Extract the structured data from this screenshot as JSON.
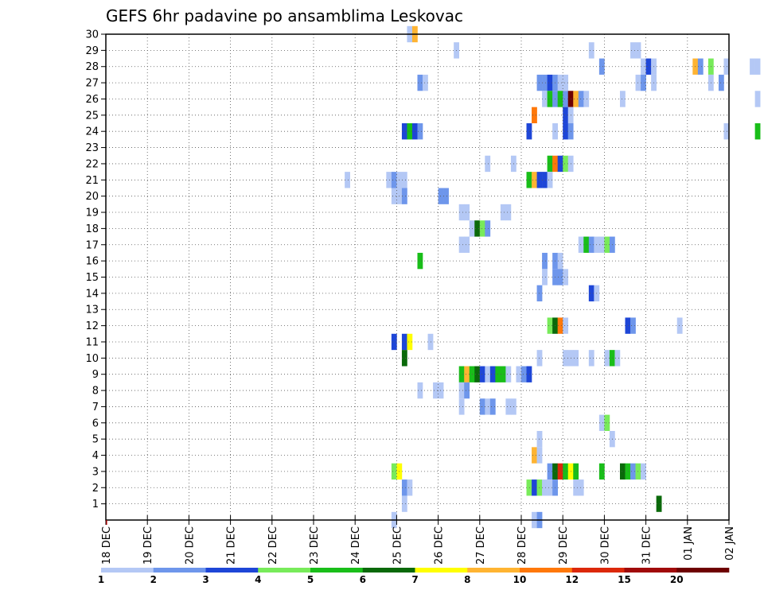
{
  "chart_data": {
    "type": "heatmap",
    "title": "GEFS 6hr padavine po ansamblima Leskovac",
    "xlabel": "",
    "ylabel": "",
    "x_tick_labels": [
      "18 DEC",
      "19 DEC",
      "20 DEC",
      "21 DEC",
      "22 DEC",
      "23 DEC",
      "24 DEC",
      "25 DEC",
      "26 DEC",
      "27 DEC",
      "28 DEC",
      "29 DEC",
      "30 DEC",
      "31 DEC",
      "01 JAN",
      "02 JAN"
    ],
    "y_tick_labels": [
      "1",
      "2",
      "3",
      "4",
      "5",
      "6",
      "7",
      "8",
      "9",
      "10",
      "11",
      "12",
      "13",
      "14",
      "15",
      "16",
      "17",
      "18",
      "19",
      "20",
      "21",
      "22",
      "23",
      "24",
      "25",
      "26",
      "27",
      "28",
      "29",
      "30"
    ],
    "x_unit": "6-hour step from 18 DEC 00Z",
    "ylim": [
      0,
      30
    ],
    "grid": true,
    "colorbar": {
      "labels": [
        "1",
        "2",
        "3",
        "4",
        "5",
        "6",
        "7",
        "8",
        "10",
        "12",
        "15",
        "20"
      ],
      "colors": [
        "#b4c8f5",
        "#6e96eb",
        "#1e46d7",
        "#78eb5a",
        "#19be19",
        "#0a690a",
        "#ffff00",
        "#ffb432",
        "#ff780a",
        "#dc280a",
        "#a00a0a",
        "#6e0000"
      ]
    },
    "cells": [
      [
        58,
        30,
        1
      ],
      [
        59,
        30,
        8
      ],
      [
        67,
        29,
        1
      ],
      [
        93,
        29,
        1
      ],
      [
        101,
        29,
        1
      ],
      [
        102,
        29,
        1
      ],
      [
        95,
        28,
        2
      ],
      [
        103,
        28,
        1
      ],
      [
        104,
        28,
        3
      ],
      [
        105,
        28,
        1
      ],
      [
        113,
        28,
        8
      ],
      [
        114,
        28,
        2
      ],
      [
        116,
        28,
        4
      ],
      [
        119,
        28,
        1
      ],
      [
        124,
        28,
        1
      ],
      [
        125,
        28,
        1
      ],
      [
        60,
        27,
        2
      ],
      [
        61,
        27,
        1
      ],
      [
        83,
        27,
        2
      ],
      [
        84,
        27,
        2
      ],
      [
        85,
        27,
        3
      ],
      [
        86,
        27,
        2
      ],
      [
        87,
        27,
        1
      ],
      [
        88,
        27,
        1
      ],
      [
        102,
        27,
        1
      ],
      [
        103,
        27,
        2
      ],
      [
        105,
        27,
        1
      ],
      [
        116,
        27,
        1
      ],
      [
        118,
        27,
        2
      ],
      [
        84,
        26,
        1
      ],
      [
        85,
        26,
        5
      ],
      [
        86,
        26,
        2
      ],
      [
        87,
        26,
        5
      ],
      [
        88,
        26,
        2
      ],
      [
        89,
        26,
        20
      ],
      [
        90,
        26,
        8
      ],
      [
        91,
        26,
        2
      ],
      [
        92,
        26,
        1
      ],
      [
        99,
        26,
        1
      ],
      [
        125,
        26,
        1
      ],
      [
        82,
        25,
        10
      ],
      [
        88,
        25,
        3
      ],
      [
        89,
        25,
        1
      ],
      [
        57,
        24,
        3
      ],
      [
        58,
        24,
        5
      ],
      [
        59,
        24,
        3
      ],
      [
        60,
        24,
        2
      ],
      [
        81,
        24,
        3
      ],
      [
        86,
        24,
        1
      ],
      [
        88,
        24,
        3
      ],
      [
        89,
        24,
        2
      ],
      [
        119,
        24,
        1
      ],
      [
        125,
        24,
        5
      ],
      [
        73,
        22,
        1
      ],
      [
        78,
        22,
        1
      ],
      [
        85,
        22,
        5
      ],
      [
        86,
        22,
        10
      ],
      [
        87,
        22,
        3
      ],
      [
        88,
        22,
        4
      ],
      [
        89,
        22,
        1
      ],
      [
        46,
        21,
        1
      ],
      [
        54,
        21,
        1
      ],
      [
        55,
        21,
        2
      ],
      [
        56,
        21,
        1
      ],
      [
        57,
        21,
        1
      ],
      [
        81,
        21,
        5
      ],
      [
        82,
        21,
        8
      ],
      [
        83,
        21,
        3
      ],
      [
        84,
        21,
        3
      ],
      [
        85,
        21,
        1
      ],
      [
        55,
        20,
        1
      ],
      [
        56,
        20,
        1
      ],
      [
        57,
        20,
        2
      ],
      [
        64,
        20,
        2
      ],
      [
        65,
        20,
        2
      ],
      [
        68,
        19,
        1
      ],
      [
        69,
        19,
        1
      ],
      [
        76,
        19,
        1
      ],
      [
        77,
        19,
        1
      ],
      [
        70,
        18,
        1
      ],
      [
        71,
        18,
        6
      ],
      [
        72,
        18,
        4
      ],
      [
        73,
        18,
        2
      ],
      [
        68,
        17,
        1
      ],
      [
        69,
        17,
        1
      ],
      [
        91,
        17,
        1
      ],
      [
        92,
        17,
        5
      ],
      [
        93,
        17,
        2
      ],
      [
        94,
        17,
        1
      ],
      [
        95,
        17,
        1
      ],
      [
        96,
        17,
        4
      ],
      [
        97,
        17,
        2
      ],
      [
        60,
        16,
        5
      ],
      [
        84,
        16,
        2
      ],
      [
        86,
        16,
        2
      ],
      [
        87,
        16,
        1
      ],
      [
        84,
        15,
        1
      ],
      [
        86,
        15,
        2
      ],
      [
        87,
        15,
        2
      ],
      [
        88,
        15,
        1
      ],
      [
        83,
        14,
        2
      ],
      [
        93,
        14,
        3
      ],
      [
        94,
        14,
        1
      ],
      [
        85,
        12,
        4
      ],
      [
        86,
        12,
        6
      ],
      [
        87,
        12,
        10
      ],
      [
        88,
        12,
        1
      ],
      [
        100,
        12,
        3
      ],
      [
        101,
        12,
        2
      ],
      [
        110,
        12,
        1
      ],
      [
        55,
        11,
        3
      ],
      [
        57,
        11,
        3
      ],
      [
        58,
        11,
        7
      ],
      [
        62,
        11,
        1
      ],
      [
        57,
        10,
        6
      ],
      [
        83,
        10,
        1
      ],
      [
        88,
        10,
        1
      ],
      [
        89,
        10,
        1
      ],
      [
        90,
        10,
        1
      ],
      [
        93,
        10,
        1
      ],
      [
        96,
        10,
        1
      ],
      [
        97,
        10,
        5
      ],
      [
        98,
        10,
        1
      ],
      [
        68,
        9,
        5
      ],
      [
        69,
        9,
        8
      ],
      [
        70,
        9,
        5
      ],
      [
        71,
        9,
        6
      ],
      [
        72,
        9,
        3
      ],
      [
        73,
        9,
        1
      ],
      [
        74,
        9,
        3
      ],
      [
        75,
        9,
        5
      ],
      [
        76,
        9,
        5
      ],
      [
        77,
        9,
        1
      ],
      [
        79,
        9,
        1
      ],
      [
        80,
        9,
        2
      ],
      [
        81,
        9,
        3
      ],
      [
        60,
        8,
        1
      ],
      [
        63,
        8,
        1
      ],
      [
        64,
        8,
        1
      ],
      [
        68,
        8,
        1
      ],
      [
        69,
        8,
        2
      ],
      [
        68,
        7,
        1
      ],
      [
        72,
        7,
        2
      ],
      [
        73,
        7,
        1
      ],
      [
        74,
        7,
        2
      ],
      [
        77,
        7,
        1
      ],
      [
        78,
        7,
        1
      ],
      [
        95,
        6,
        1
      ],
      [
        96,
        6,
        4
      ],
      [
        83,
        5,
        1
      ],
      [
        97,
        5,
        1
      ],
      [
        82,
        4,
        8
      ],
      [
        83,
        4,
        1
      ],
      [
        55,
        3,
        4
      ],
      [
        56,
        3,
        7
      ],
      [
        85,
        3,
        2
      ],
      [
        86,
        3,
        6
      ],
      [
        87,
        3,
        12
      ],
      [
        88,
        3,
        5
      ],
      [
        89,
        3,
        7
      ],
      [
        90,
        3,
        5
      ],
      [
        95,
        3,
        5
      ],
      [
        99,
        3,
        6
      ],
      [
        100,
        3,
        5
      ],
      [
        101,
        3,
        2
      ],
      [
        102,
        3,
        4
      ],
      [
        103,
        3,
        1
      ],
      [
        57,
        2,
        2
      ],
      [
        58,
        2,
        1
      ],
      [
        81,
        2,
        4
      ],
      [
        82,
        2,
        3
      ],
      [
        83,
        2,
        4
      ],
      [
        84,
        2,
        1
      ],
      [
        85,
        2,
        1
      ],
      [
        86,
        2,
        2
      ],
      [
        90,
        2,
        1
      ],
      [
        91,
        2,
        1
      ],
      [
        57,
        1,
        1
      ],
      [
        106,
        1,
        6
      ],
      [
        55,
        0,
        1
      ],
      [
        82,
        0,
        1
      ],
      [
        83,
        0,
        2
      ]
    ]
  }
}
